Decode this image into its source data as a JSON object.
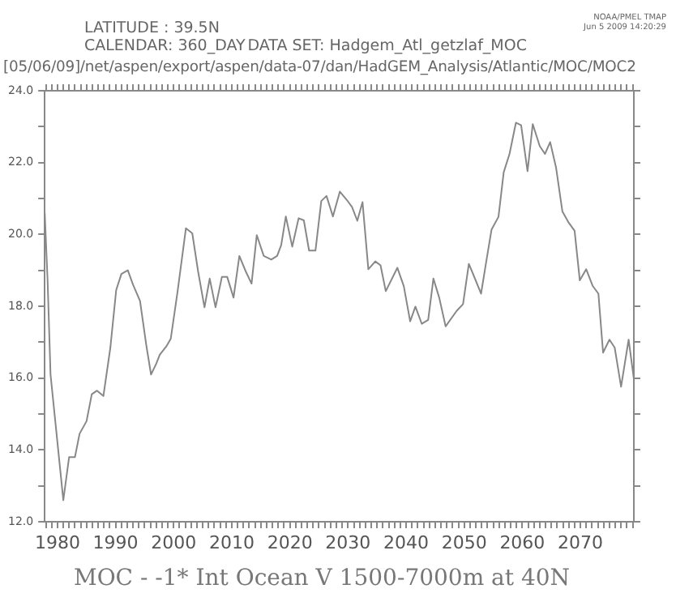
{
  "chart_data": {
    "type": "line",
    "title": "MOC - -1* Int Ocean V 1500-7000m at 40N",
    "annotations": [
      "LATITUDE : 39.5N",
      "CALENDAR: 360_DAY",
      "DATA SET: Hadgem_Atl_getzlaf_MOC",
      "[05/06/09]/net/aspen/export/aspen/data-07/dan/HadGEM_Analysis/Atlantic/MOC/MOC2",
      "NOAA/PMEL TMAP",
      "Jun  5 2009 14:20:29"
    ],
    "x": [
      1977.8,
      1978.3,
      1978.8,
      1981.0,
      1982.0,
      1983.0,
      1983.8,
      1985.0,
      1985.9,
      1986.8,
      1987.9,
      1989.1,
      1990.1,
      1991.0,
      1992.1,
      1993.0,
      1994.2,
      1995.3,
      1996.1,
      1997.0,
      1997.6,
      1998.8,
      1999.5,
      2000.7,
      2002.1,
      2003.2,
      2004.2,
      2005.3,
      2006.2,
      2007.2,
      2008.3,
      2009.2,
      2010.3,
      2011.3,
      2012.4,
      2013.4,
      2014.3,
      2015.5,
      2016.8,
      2017.8,
      2018.5,
      2019.3,
      2020.4,
      2021.5,
      2022.4,
      2023.3,
      2024.4,
      2025.4,
      2026.3,
      2027.4,
      2028.6,
      2029.8,
      2030.7,
      2031.6,
      2032.5,
      2033.5,
      2034.7,
      2035.6,
      2036.5,
      2038.5,
      2039.6,
      2040.7,
      2041.6,
      2042.7,
      2043.8,
      2044.7,
      2045.7,
      2046.8,
      2048.7,
      2049.8,
      2050.8,
      2051.9,
      2052.9,
      2053.8,
      2054.7,
      2055.9,
      2056.8,
      2057.8,
      2058.9,
      2059.8,
      2060.9,
      2061.8,
      2063.0,
      2063.9,
      2064.8,
      2065.8,
      2066.9,
      2067.9,
      2069.0,
      2069.9,
      2071.0,
      2072.1,
      2073.1,
      2073.9,
      2075.0,
      2075.9,
      2077.0,
      2078.3,
      2079.2
    ],
    "series": [
      {
        "color": "#888888",
        "values": [
          20.6,
          18.7,
          16.1,
          12.6,
          13.8,
          13.8,
          14.45,
          14.8,
          15.55,
          15.65,
          15.5,
          16.85,
          18.45,
          18.9,
          19.0,
          18.6,
          18.15,
          16.9,
          16.1,
          16.4,
          16.65,
          16.9,
          17.1,
          18.45,
          20.17,
          20.03,
          18.97,
          17.97,
          18.77,
          17.97,
          18.82,
          18.82,
          18.24,
          19.4,
          18.97,
          18.63,
          19.98,
          19.4,
          19.3,
          19.4,
          19.7,
          20.5,
          19.66,
          20.45,
          20.39,
          19.55,
          19.55,
          20.93,
          21.07,
          20.5,
          21.19,
          20.96,
          20.76,
          20.38,
          20.9,
          19.03,
          19.25,
          19.14,
          18.42,
          19.07,
          18.56,
          17.58,
          17.99,
          17.51,
          17.62,
          18.77,
          18.24,
          17.44,
          17.87,
          18.06,
          19.18,
          18.75,
          18.35,
          19.25,
          20.13,
          20.49,
          21.73,
          22.24,
          23.11,
          23.04,
          21.76,
          23.07,
          22.46,
          22.24,
          22.57,
          21.87,
          20.64,
          20.35,
          20.1,
          18.72,
          19.03,
          18.57,
          18.35,
          16.71,
          17.07,
          16.85,
          15.76,
          17.07,
          15.98
        ]
      }
    ],
    "xlim": [
      1977.8,
      2079.2
    ],
    "xticks": [
      {
        "value": 1978,
        "label": null
      },
      {
        "value": 1979,
        "label": null
      },
      1980,
      {
        "value": 1981,
        "label": null
      },
      {
        "value": 1982,
        "label": null
      },
      {
        "value": 1983,
        "label": null
      },
      {
        "value": 1984,
        "label": null
      },
      {
        "value": 1985,
        "label": null
      },
      {
        "value": 1986,
        "label": null
      },
      {
        "value": 1987,
        "label": null
      },
      {
        "value": 1988,
        "label": null
      },
      {
        "value": 1989,
        "label": null
      },
      1990,
      {
        "value": 1991,
        "label": null
      },
      {
        "value": 1992,
        "label": null
      },
      {
        "value": 1993,
        "label": null
      },
      {
        "value": 1994,
        "label": null
      },
      {
        "value": 1995,
        "label": null
      },
      {
        "value": 1996,
        "label": null
      },
      {
        "value": 1997,
        "label": null
      },
      {
        "value": 1998,
        "label": null
      },
      {
        "value": 1999,
        "label": null
      },
      2000,
      {
        "value": 2001,
        "label": null
      },
      {
        "value": 2002,
        "label": null
      },
      {
        "value": 2003,
        "label": null
      },
      {
        "value": 2004,
        "label": null
      },
      {
        "value": 2005,
        "label": null
      },
      {
        "value": 2006,
        "label": null
      },
      {
        "value": 2007,
        "label": null
      },
      {
        "value": 2008,
        "label": null
      },
      {
        "value": 2009,
        "label": null
      },
      2010,
      {
        "value": 2011,
        "label": null
      },
      {
        "value": 2012,
        "label": null
      },
      {
        "value": 2013,
        "label": null
      },
      {
        "value": 2014,
        "label": null
      },
      {
        "value": 2015,
        "label": null
      },
      {
        "value": 2016,
        "label": null
      },
      {
        "value": 2017,
        "label": null
      },
      {
        "value": 2018,
        "label": null
      },
      {
        "value": 2019,
        "label": null
      },
      2020,
      {
        "value": 2021,
        "label": null
      },
      {
        "value": 2022,
        "label": null
      },
      {
        "value": 2023,
        "label": null
      },
      {
        "value": 2024,
        "label": null
      },
      {
        "value": 2025,
        "label": null
      },
      {
        "value": 2026,
        "label": null
      },
      {
        "value": 2027,
        "label": null
      },
      {
        "value": 2028,
        "label": null
      },
      {
        "value": 2029,
        "label": null
      },
      2030,
      {
        "value": 2031,
        "label": null
      },
      {
        "value": 2032,
        "label": null
      },
      {
        "value": 2033,
        "label": null
      },
      {
        "value": 2034,
        "label": null
      },
      {
        "value": 2035,
        "label": null
      },
      {
        "value": 2036,
        "label": null
      },
      {
        "value": 2037,
        "label": null
      },
      {
        "value": 2038,
        "label": null
      },
      {
        "value": 2039,
        "label": null
      },
      2040,
      {
        "value": 2041,
        "label": null
      },
      {
        "value": 2042,
        "label": null
      },
      {
        "value": 2043,
        "label": null
      },
      {
        "value": 2044,
        "label": null
      },
      {
        "value": 2045,
        "label": null
      },
      {
        "value": 2046,
        "label": null
      },
      {
        "value": 2047,
        "label": null
      },
      {
        "value": 2048,
        "label": null
      },
      {
        "value": 2049,
        "label": null
      },
      2050,
      {
        "value": 2051,
        "label": null
      },
      {
        "value": 2052,
        "label": null
      },
      {
        "value": 2053,
        "label": null
      },
      {
        "value": 2054,
        "label": null
      },
      {
        "value": 2055,
        "label": null
      },
      {
        "value": 2056,
        "label": null
      },
      {
        "value": 2057,
        "label": null
      },
      {
        "value": 2058,
        "label": null
      },
      {
        "value": 2059,
        "label": null
      },
      2060,
      {
        "value": 2061,
        "label": null
      },
      {
        "value": 2062,
        "label": null
      },
      {
        "value": 2063,
        "label": null
      },
      {
        "value": 2064,
        "label": null
      },
      {
        "value": 2065,
        "label": null
      },
      {
        "value": 2066,
        "label": null
      },
      {
        "value": 2067,
        "label": null
      },
      {
        "value": 2068,
        "label": null
      },
      {
        "value": 2069,
        "label": null
      },
      2070,
      {
        "value": 2071,
        "label": null
      },
      {
        "value": 2072,
        "label": null
      },
      {
        "value": 2073,
        "label": null
      },
      {
        "value": 2074,
        "label": null
      },
      {
        "value": 2075,
        "label": null
      },
      {
        "value": 2076,
        "label": null
      },
      {
        "value": 2077,
        "label": null
      },
      {
        "value": 2078,
        "label": null
      },
      {
        "value": 2079,
        "label": null
      }
    ],
    "ylim": [
      12,
      24
    ],
    "yticks": [
      {
        "value": 12,
        "label": "12.0"
      },
      {
        "value": 13,
        "label": null
      },
      {
        "value": 14,
        "label": "14.0"
      },
      {
        "value": 15,
        "label": null
      },
      {
        "value": 16,
        "label": "16.0"
      },
      {
        "value": 17,
        "label": null
      },
      {
        "value": 18,
        "label": "18.0"
      },
      {
        "value": 19,
        "label": null
      },
      {
        "value": 20,
        "label": "20.0"
      },
      {
        "value": 21,
        "label": null
      },
      {
        "value": 22,
        "label": "22.0"
      },
      {
        "value": 23,
        "label": null
      },
      {
        "value": 24,
        "label": "24.0"
      }
    ],
    "grid": false,
    "legend": false
  }
}
